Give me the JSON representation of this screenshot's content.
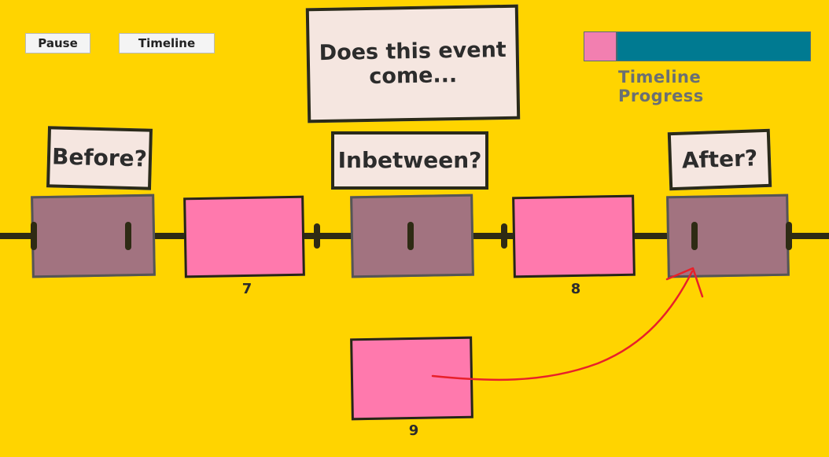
{
  "controls": {
    "pause_label": "Pause",
    "timeline_label": "Timeline"
  },
  "progress": {
    "label": "Timeline Progress",
    "fraction": 0.14,
    "fill_color": "#f27fb0",
    "track_color": "#007a91"
  },
  "question": "Does this event come...",
  "choices": {
    "before": "Before?",
    "inbetween": "Inbetween?",
    "after": "After?"
  },
  "placed_events": [
    {
      "number": "7"
    },
    {
      "number": "8"
    }
  ],
  "current_event": {
    "number": "9"
  },
  "colors": {
    "background": "#ffd400",
    "event": "#ff79ad",
    "slot": "#a27380",
    "arrow": "#e8202a"
  }
}
